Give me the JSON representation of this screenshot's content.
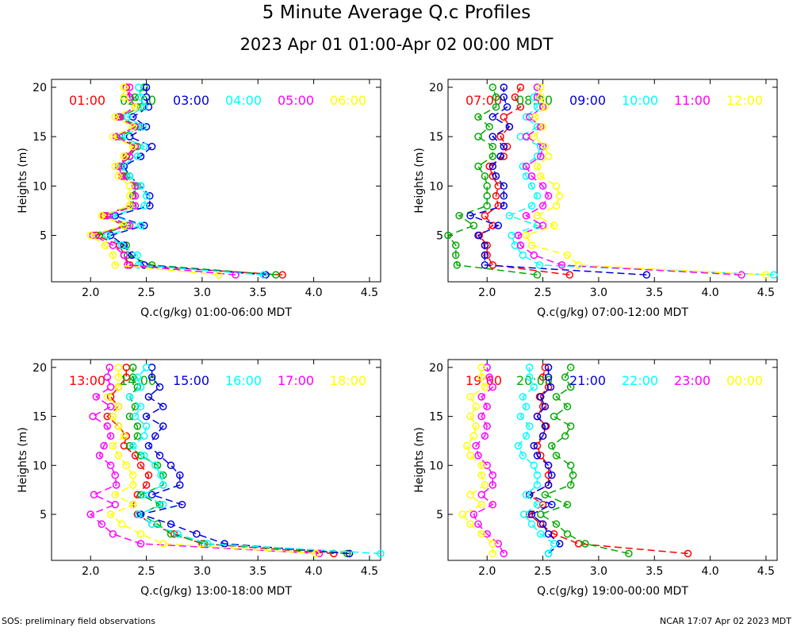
{
  "title": "5 Minute Average Q.c Profiles",
  "subtitle": "2023 Apr 01 01:00-Apr 02 00:00 MDT",
  "footer_left": "SOS: preliminary field observations",
  "footer_right": "NCAR 17:07 Apr 02 2023 MDT",
  "colors": [
    "#ff0000",
    "#00aa00",
    "#0000dd",
    "#00ffff",
    "#ff00ff",
    "#ffff00"
  ],
  "chart_data": [
    {
      "type": "line",
      "xlabel": "Q.c(g/kg) 01:00-06:00 MDT",
      "ylabel": "Heights (m)",
      "xlim": [
        1.65,
        4.6
      ],
      "ylim": [
        0.3,
        20.8
      ],
      "xticks": [
        "2.0",
        "2.5",
        "3.0",
        "3.5",
        "4.0",
        "4.5"
      ],
      "yticks": [
        "5",
        "10",
        "15",
        "20"
      ],
      "heights": [
        1,
        2,
        3,
        4,
        5,
        6,
        7,
        8,
        9,
        10,
        11,
        12,
        13,
        14,
        15,
        16,
        17,
        18,
        19,
        20
      ],
      "series": [
        {
          "name": "01:00",
          "values": [
            3.72,
            2.35,
            2.3,
            2.26,
            2.05,
            2.3,
            2.12,
            2.35,
            2.38,
            2.4,
            2.3,
            2.25,
            2.32,
            2.4,
            2.23,
            2.4,
            2.25,
            2.4,
            2.35,
            2.32
          ]
        },
        {
          "name": "02:00",
          "values": [
            3.66,
            2.55,
            2.33,
            2.32,
            2.08,
            2.33,
            2.15,
            2.38,
            2.38,
            2.42,
            2.32,
            2.27,
            2.35,
            2.42,
            2.26,
            2.43,
            2.27,
            2.45,
            2.4,
            2.48
          ]
        },
        {
          "name": "03:00",
          "values": [
            3.57,
            2.48,
            2.37,
            2.3,
            2.18,
            2.48,
            2.22,
            2.53,
            2.53,
            2.45,
            2.35,
            2.3,
            2.45,
            2.55,
            2.35,
            2.5,
            2.38,
            2.52,
            2.5,
            2.5
          ]
        },
        {
          "name": "04:00",
          "values": [
            3.55,
            2.43,
            2.42,
            2.28,
            2.15,
            2.45,
            2.2,
            2.48,
            2.5,
            2.45,
            2.35,
            2.28,
            2.42,
            2.48,
            2.28,
            2.47,
            2.33,
            2.48,
            2.45,
            2.43
          ]
        },
        {
          "name": "05:00",
          "values": [
            3.3,
            2.33,
            2.3,
            2.2,
            2.02,
            2.35,
            2.15,
            2.4,
            2.4,
            2.4,
            2.28,
            2.25,
            2.35,
            2.4,
            2.23,
            2.4,
            2.26,
            2.4,
            2.35,
            2.35
          ]
        },
        {
          "name": "06:00",
          "values": [
            3.15,
            2.22,
            2.2,
            2.13,
            2.0,
            2.3,
            2.1,
            2.35,
            2.35,
            2.35,
            2.25,
            2.22,
            2.3,
            2.38,
            2.2,
            2.38,
            2.22,
            2.4,
            2.3,
            2.3
          ]
        }
      ]
    },
    {
      "type": "line",
      "xlabel": "Q.c(g/kg) 07:00-12:00 MDT",
      "ylabel": "Heights (m)",
      "xlim": [
        1.65,
        4.6
      ],
      "ylim": [
        0.3,
        20.8
      ],
      "xticks": [
        "2.0",
        "2.5",
        "3.0",
        "3.5",
        "4.0",
        "4.5"
      ],
      "yticks": [
        "5",
        "10",
        "15",
        "20"
      ],
      "heights": [
        1,
        2,
        3,
        4,
        5,
        6,
        7,
        8,
        9,
        10,
        11,
        12,
        13,
        14,
        15,
        16,
        17,
        18,
        19,
        20
      ],
      "series": [
        {
          "name": "07:00",
          "values": [
            2.74,
            2.05,
            2.0,
            2.0,
            1.93,
            2.05,
            1.98,
            2.1,
            2.08,
            2.1,
            2.05,
            2.02,
            2.15,
            2.18,
            2.12,
            2.2,
            2.15,
            2.3,
            2.25,
            2.3
          ]
        },
        {
          "name": "08:00",
          "values": [
            2.45,
            1.73,
            1.72,
            1.72,
            1.65,
            1.88,
            1.75,
            2.0,
            2.0,
            2.0,
            1.98,
            1.92,
            2.05,
            2.05,
            1.92,
            2.02,
            1.92,
            2.08,
            2.08,
            2.05
          ]
        },
        {
          "name": "09:00",
          "values": [
            3.43,
            1.98,
            1.98,
            1.98,
            1.92,
            2.1,
            1.85,
            2.15,
            2.15,
            2.15,
            2.08,
            2.05,
            2.12,
            2.15,
            2.05,
            2.2,
            2.05,
            2.18,
            2.15,
            2.15
          ]
        },
        {
          "name": "10:00",
          "values": [
            4.57,
            2.47,
            2.32,
            2.25,
            2.22,
            2.45,
            2.2,
            2.4,
            2.45,
            2.4,
            2.35,
            2.32,
            2.45,
            2.48,
            2.3,
            2.45,
            2.35,
            2.45,
            2.42,
            2.45
          ]
        },
        {
          "name": "11:00",
          "values": [
            4.28,
            2.67,
            2.42,
            2.3,
            2.28,
            2.5,
            2.35,
            2.5,
            2.55,
            2.5,
            2.4,
            2.35,
            2.48,
            2.5,
            2.35,
            2.48,
            2.38,
            2.5,
            2.45,
            2.45
          ]
        },
        {
          "name": "12:00",
          "values": [
            4.5,
            2.82,
            2.72,
            2.4,
            2.35,
            2.6,
            2.45,
            2.62,
            2.65,
            2.62,
            2.48,
            2.45,
            2.55,
            2.52,
            2.42,
            2.5,
            2.43,
            2.52,
            2.48,
            2.48
          ]
        }
      ]
    },
    {
      "type": "line",
      "xlabel": "Q.c(g/kg) 13:00-18:00 MDT",
      "ylabel": "Heights (m)",
      "xlim": [
        1.65,
        4.6
      ],
      "ylim": [
        0.3,
        20.8
      ],
      "xticks": [
        "2.0",
        "2.5",
        "3.0",
        "3.5",
        "4.0",
        "4.5"
      ],
      "yticks": [
        "5",
        "10",
        "15",
        "20"
      ],
      "heights": [
        1,
        2,
        3,
        4,
        5,
        6,
        7,
        8,
        9,
        10,
        11,
        12,
        13,
        14,
        15,
        16,
        17,
        18,
        19,
        20
      ],
      "series": [
        {
          "name": "13:00",
          "values": [
            4.18,
            3.0,
            2.75,
            2.55,
            2.42,
            2.38,
            2.42,
            2.5,
            2.52,
            2.45,
            2.4,
            2.3,
            2.32,
            2.25,
            2.15,
            2.25,
            2.18,
            2.25,
            2.32,
            2.32
          ]
        },
        {
          "name": "14:00",
          "values": [
            4.3,
            3.02,
            2.72,
            2.6,
            2.45,
            2.62,
            2.45,
            2.65,
            2.65,
            2.6,
            2.45,
            2.35,
            2.42,
            2.42,
            2.35,
            2.4,
            2.35,
            2.42,
            2.38,
            2.38
          ]
        },
        {
          "name": "15:00",
          "values": [
            4.32,
            3.2,
            2.95,
            2.72,
            2.45,
            2.82,
            2.55,
            2.8,
            2.8,
            2.72,
            2.62,
            2.52,
            2.58,
            2.65,
            2.5,
            2.65,
            2.52,
            2.62,
            2.55,
            2.55
          ]
        },
        {
          "name": "16:00",
          "values": [
            4.6,
            3.05,
            2.78,
            2.55,
            2.43,
            2.65,
            2.47,
            2.65,
            2.63,
            2.58,
            2.48,
            2.38,
            2.48,
            2.5,
            2.4,
            2.45,
            2.35,
            2.45,
            2.42,
            2.5
          ]
        },
        {
          "name": "17:00",
          "values": [
            4.05,
            2.45,
            2.2,
            2.1,
            2.0,
            2.22,
            2.03,
            2.23,
            2.22,
            2.18,
            2.08,
            2.12,
            2.18,
            2.15,
            2.02,
            2.18,
            2.05,
            2.18,
            2.15,
            2.17
          ]
        },
        {
          "name": "18:00",
          "values": [
            4.02,
            2.65,
            2.45,
            2.28,
            2.18,
            2.38,
            2.22,
            2.38,
            2.38,
            2.32,
            2.25,
            2.2,
            2.3,
            2.25,
            2.2,
            2.25,
            2.15,
            2.25,
            2.25,
            2.25
          ]
        }
      ]
    },
    {
      "type": "line",
      "xlabel": "Q.c(g/kg) 19:00-00:00 MDT",
      "ylabel": "Heights (m)",
      "xlim": [
        1.65,
        4.6
      ],
      "ylim": [
        0.3,
        20.8
      ],
      "xticks": [
        "2.0",
        "2.5",
        "3.0",
        "3.5",
        "4.0",
        "4.5"
      ],
      "yticks": [
        "5",
        "10",
        "15",
        "20"
      ],
      "heights": [
        1,
        2,
        3,
        4,
        5,
        6,
        7,
        8,
        9,
        10,
        11,
        12,
        13,
        14,
        15,
        16,
        17,
        18,
        19,
        20
      ],
      "series": [
        {
          "name": "19:00",
          "values": [
            3.8,
            2.82,
            2.6,
            2.48,
            2.38,
            2.5,
            2.38,
            2.55,
            2.55,
            2.55,
            2.48,
            2.45,
            2.5,
            2.53,
            2.45,
            2.5,
            2.47,
            2.55,
            2.5,
            2.52
          ]
        },
        {
          "name": "20:00",
          "values": [
            3.27,
            2.88,
            2.72,
            2.62,
            2.48,
            2.72,
            2.52,
            2.75,
            2.77,
            2.75,
            2.62,
            2.58,
            2.7,
            2.75,
            2.6,
            2.72,
            2.62,
            2.75,
            2.7,
            2.75
          ]
        },
        {
          "name": "21:00",
          "values": [
            2.55,
            2.65,
            2.55,
            2.5,
            2.4,
            2.58,
            2.38,
            2.55,
            2.58,
            2.55,
            2.45,
            2.42,
            2.5,
            2.52,
            2.45,
            2.52,
            2.48,
            2.57,
            2.55,
            2.55
          ]
        },
        {
          "name": "22:00",
          "values": [
            2.55,
            2.6,
            2.48,
            2.4,
            2.33,
            2.45,
            2.35,
            2.45,
            2.45,
            2.42,
            2.32,
            2.28,
            2.35,
            2.38,
            2.3,
            2.35,
            2.32,
            2.42,
            2.38,
            2.38
          ]
        },
        {
          "name": "23:00",
          "values": [
            2.15,
            2.1,
            2.0,
            1.92,
            1.88,
            2.05,
            1.95,
            2.05,
            2.05,
            2.0,
            1.92,
            1.9,
            1.98,
            2.0,
            1.95,
            2.0,
            1.95,
            2.05,
            2.02,
            2.0
          ]
        },
        {
          "name": "00:00",
          "values": [
            2.05,
            2.05,
            1.95,
            1.85,
            1.78,
            1.95,
            1.85,
            1.98,
            1.95,
            1.95,
            1.85,
            1.82,
            1.88,
            1.9,
            1.85,
            1.9,
            1.85,
            1.98,
            1.95,
            1.95
          ]
        }
      ]
    }
  ]
}
